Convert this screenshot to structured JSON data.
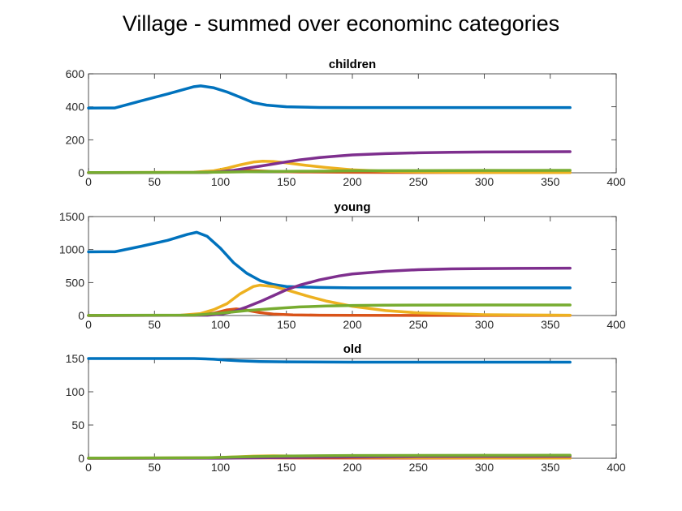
{
  "figure_title": "Village - summed over econominc categories",
  "colors": {
    "s1": "#0072BD",
    "s2": "#D95319",
    "s3": "#EDB120",
    "s4": "#7E2F8E",
    "s5": "#77AC30",
    "axis": "#262626"
  },
  "chart_data": [
    {
      "type": "line",
      "title": "children",
      "xlabel": "",
      "ylabel": "",
      "xlim": [
        0,
        400
      ],
      "ylim": [
        0,
        600
      ],
      "xticks": [
        0,
        50,
        100,
        150,
        200,
        250,
        300,
        350,
        400
      ],
      "yticks": [
        0,
        200,
        400,
        600
      ],
      "grid": false,
      "legend": "none",
      "series": [
        {
          "color_key": "s1",
          "points": [
            [
              0,
              392
            ],
            [
              20,
              393
            ],
            [
              40,
              436
            ],
            [
              60,
              478
            ],
            [
              80,
              522
            ],
            [
              85,
              527
            ],
            [
              95,
              515
            ],
            [
              105,
              490
            ],
            [
              115,
              458
            ],
            [
              125,
              425
            ],
            [
              135,
              410
            ],
            [
              150,
              400
            ],
            [
              175,
              396
            ],
            [
              200,
              395
            ],
            [
              250,
              395
            ],
            [
              300,
              395
            ],
            [
              365,
              395
            ]
          ]
        },
        {
          "color_key": "s2",
          "points": [
            [
              0,
              1
            ],
            [
              80,
              2
            ],
            [
              95,
              6
            ],
            [
              105,
              12
            ],
            [
              115,
              15
            ],
            [
              125,
              12
            ],
            [
              140,
              8
            ],
            [
              160,
              5
            ],
            [
              200,
              3
            ],
            [
              250,
              2
            ],
            [
              300,
              2
            ],
            [
              365,
              2
            ]
          ]
        },
        {
          "color_key": "s3",
          "points": [
            [
              0,
              1
            ],
            [
              80,
              3
            ],
            [
              95,
              12
            ],
            [
              105,
              28
            ],
            [
              115,
              48
            ],
            [
              125,
              65
            ],
            [
              132,
              70
            ],
            [
              140,
              68
            ],
            [
              150,
              60
            ],
            [
              165,
              45
            ],
            [
              180,
              32
            ],
            [
              200,
              18
            ],
            [
              225,
              9
            ],
            [
              250,
              5
            ],
            [
              300,
              2
            ],
            [
              365,
              1
            ]
          ]
        },
        {
          "color_key": "s4",
          "points": [
            [
              0,
              0
            ],
            [
              90,
              2
            ],
            [
              100,
              6
            ],
            [
              110,
              15
            ],
            [
              120,
              28
            ],
            [
              130,
              40
            ],
            [
              140,
              53
            ],
            [
              150,
              66
            ],
            [
              160,
              78
            ],
            [
              175,
              92
            ],
            [
              190,
              102
            ],
            [
              200,
              108
            ],
            [
              225,
              116
            ],
            [
              250,
              121
            ],
            [
              275,
              124
            ],
            [
              300,
              126
            ],
            [
              365,
              128
            ]
          ]
        },
        {
          "color_key": "s5",
          "points": [
            [
              0,
              1
            ],
            [
              80,
              2
            ],
            [
              100,
              4
            ],
            [
              120,
              6
            ],
            [
              140,
              8
            ],
            [
              160,
              9
            ],
            [
              180,
              10
            ],
            [
              200,
              12
            ],
            [
              250,
              13
            ],
            [
              300,
              14
            ],
            [
              365,
              15
            ]
          ]
        }
      ]
    },
    {
      "type": "line",
      "title": "young",
      "xlabel": "",
      "ylabel": "",
      "xlim": [
        0,
        400
      ],
      "ylim": [
        0,
        1500
      ],
      "xticks": [
        0,
        50,
        100,
        150,
        200,
        250,
        300,
        350,
        400
      ],
      "yticks": [
        0,
        500,
        1000,
        1500
      ],
      "grid": false,
      "legend": "none",
      "series": [
        {
          "color_key": "s1",
          "points": [
            [
              0,
              965
            ],
            [
              20,
              967
            ],
            [
              40,
              1050
            ],
            [
              60,
              1140
            ],
            [
              75,
              1230
            ],
            [
              82,
              1262
            ],
            [
              90,
              1200
            ],
            [
              100,
              1020
            ],
            [
              110,
              800
            ],
            [
              120,
              640
            ],
            [
              130,
              530
            ],
            [
              140,
              470
            ],
            [
              150,
              440
            ],
            [
              175,
              425
            ],
            [
              200,
              420
            ],
            [
              250,
              420
            ],
            [
              300,
              420
            ],
            [
              365,
              420
            ]
          ]
        },
        {
          "color_key": "s2",
          "points": [
            [
              0,
              2
            ],
            [
              80,
              4
            ],
            [
              95,
              35
            ],
            [
              105,
              85
            ],
            [
              112,
              100
            ],
            [
              120,
              80
            ],
            [
              130,
              45
            ],
            [
              140,
              22
            ],
            [
              155,
              10
            ],
            [
              175,
              5
            ],
            [
              200,
              3
            ],
            [
              250,
              2
            ],
            [
              365,
              2
            ]
          ]
        },
        {
          "color_key": "s3",
          "points": [
            [
              0,
              2
            ],
            [
              70,
              5
            ],
            [
              85,
              30
            ],
            [
              95,
              90
            ],
            [
              105,
              180
            ],
            [
              115,
              330
            ],
            [
              125,
              440
            ],
            [
              130,
              460
            ],
            [
              140,
              440
            ],
            [
              150,
              390
            ],
            [
              165,
              300
            ],
            [
              180,
              220
            ],
            [
              200,
              140
            ],
            [
              225,
              75
            ],
            [
              250,
              40
            ],
            [
              300,
              12
            ],
            [
              365,
              4
            ]
          ]
        },
        {
          "color_key": "s4",
          "points": [
            [
              0,
              0
            ],
            [
              90,
              4
            ],
            [
              100,
              20
            ],
            [
              110,
              60
            ],
            [
              120,
              130
            ],
            [
              130,
              210
            ],
            [
              140,
              300
            ],
            [
              150,
              390
            ],
            [
              160,
              460
            ],
            [
              175,
              540
            ],
            [
              190,
              600
            ],
            [
              200,
              630
            ],
            [
              225,
              670
            ],
            [
              250,
              695
            ],
            [
              275,
              707
            ],
            [
              300,
              712
            ],
            [
              365,
              718
            ]
          ]
        },
        {
          "color_key": "s5",
          "points": [
            [
              0,
              2
            ],
            [
              80,
              6
            ],
            [
              100,
              35
            ],
            [
              120,
              75
            ],
            [
              140,
              105
            ],
            [
              160,
              130
            ],
            [
              180,
              145
            ],
            [
              200,
              152
            ],
            [
              225,
              156
            ],
            [
              250,
              158
            ],
            [
              300,
              160
            ],
            [
              365,
              160
            ]
          ]
        }
      ]
    },
    {
      "type": "line",
      "title": "old",
      "xlabel": "",
      "ylabel": "",
      "xlim": [
        0,
        400
      ],
      "ylim": [
        0,
        150
      ],
      "xticks": [
        0,
        50,
        100,
        150,
        200,
        250,
        300,
        350,
        400
      ],
      "yticks": [
        0,
        50,
        100,
        150
      ],
      "grid": false,
      "legend": "none",
      "series": [
        {
          "color_key": "s1",
          "points": [
            [
              0,
              150
            ],
            [
              50,
              150
            ],
            [
              80,
              150
            ],
            [
              95,
              149
            ],
            [
              105,
              147.5
            ],
            [
              115,
              146.5
            ],
            [
              130,
              145.5
            ],
            [
              150,
              145
            ],
            [
              200,
              144.5
            ],
            [
              365,
              144.5
            ]
          ]
        },
        {
          "color_key": "s2",
          "points": [
            [
              0,
              0.2
            ],
            [
              90,
              0.4
            ],
            [
              110,
              0.8
            ],
            [
              130,
              0.6
            ],
            [
              160,
              0.4
            ],
            [
              365,
              0.3
            ]
          ]
        },
        {
          "color_key": "s3",
          "points": [
            [
              0,
              0.3
            ],
            [
              90,
              0.6
            ],
            [
              110,
              2
            ],
            [
              125,
              3.2
            ],
            [
              140,
              3.6
            ],
            [
              155,
              3.3
            ],
            [
              175,
              2.6
            ],
            [
              200,
              1.8
            ],
            [
              250,
              0.9
            ],
            [
              300,
              0.5
            ],
            [
              365,
              0.3
            ]
          ]
        },
        {
          "color_key": "s4",
          "points": [
            [
              0,
              0
            ],
            [
              100,
              0.2
            ],
            [
              130,
              0.8
            ],
            [
              160,
              1.5
            ],
            [
              200,
              2.2
            ],
            [
              250,
              2.7
            ],
            [
              300,
              2.9
            ],
            [
              365,
              3.0
            ]
          ]
        },
        {
          "color_key": "s5",
          "points": [
            [
              0,
              0.3
            ],
            [
              90,
              0.7
            ],
            [
              110,
              1.8
            ],
            [
              130,
              2.8
            ],
            [
              150,
              3.4
            ],
            [
              175,
              3.8
            ],
            [
              200,
              4.1
            ],
            [
              250,
              4.3
            ],
            [
              300,
              4.4
            ],
            [
              365,
              4.5
            ]
          ]
        }
      ]
    }
  ]
}
